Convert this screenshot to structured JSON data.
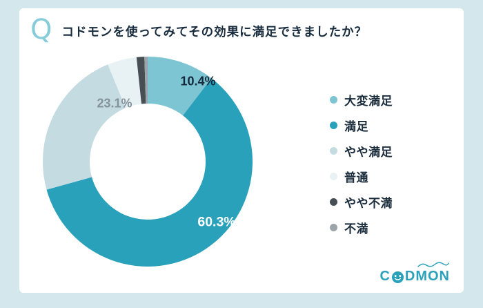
{
  "card": {
    "question_mark": "Q"
  },
  "chart_data": {
    "type": "pie",
    "donut": true,
    "title": "コドモンを使ってみてその効果に満足できましたか？",
    "start_angle_deg": 0,
    "direction": "clockwise",
    "legend_position": "right",
    "segments": [
      {
        "label": "大変満足",
        "value": 10.4,
        "pct_label": "10.4%",
        "color": "#7ec5d4",
        "label_color": "#16293c"
      },
      {
        "label": "満足",
        "value": 60.3,
        "pct_label": "60.3%",
        "color": "#2aa1ba",
        "label_color": "#ffffff"
      },
      {
        "label": "やや満足",
        "value": 23.1,
        "pct_label": "23.1%",
        "color": "#c4dbe2",
        "label_color": "#84929b"
      },
      {
        "label": "普通",
        "value": 4.5,
        "pct_label": "",
        "color": "#e8f1f4"
      },
      {
        "label": "やや不満",
        "value": 1.2,
        "pct_label": "",
        "color": "#474f54"
      },
      {
        "label": "不満",
        "value": 0.5,
        "pct_label": "",
        "color": "#9ba4a9"
      }
    ]
  },
  "logo": {
    "prefix": "C",
    "suffix": "DMON"
  },
  "colors": {
    "frame": "#d3e7ed",
    "card": "#ffffff",
    "accent": "#2aa1ba",
    "title_text": "#182c3d"
  }
}
